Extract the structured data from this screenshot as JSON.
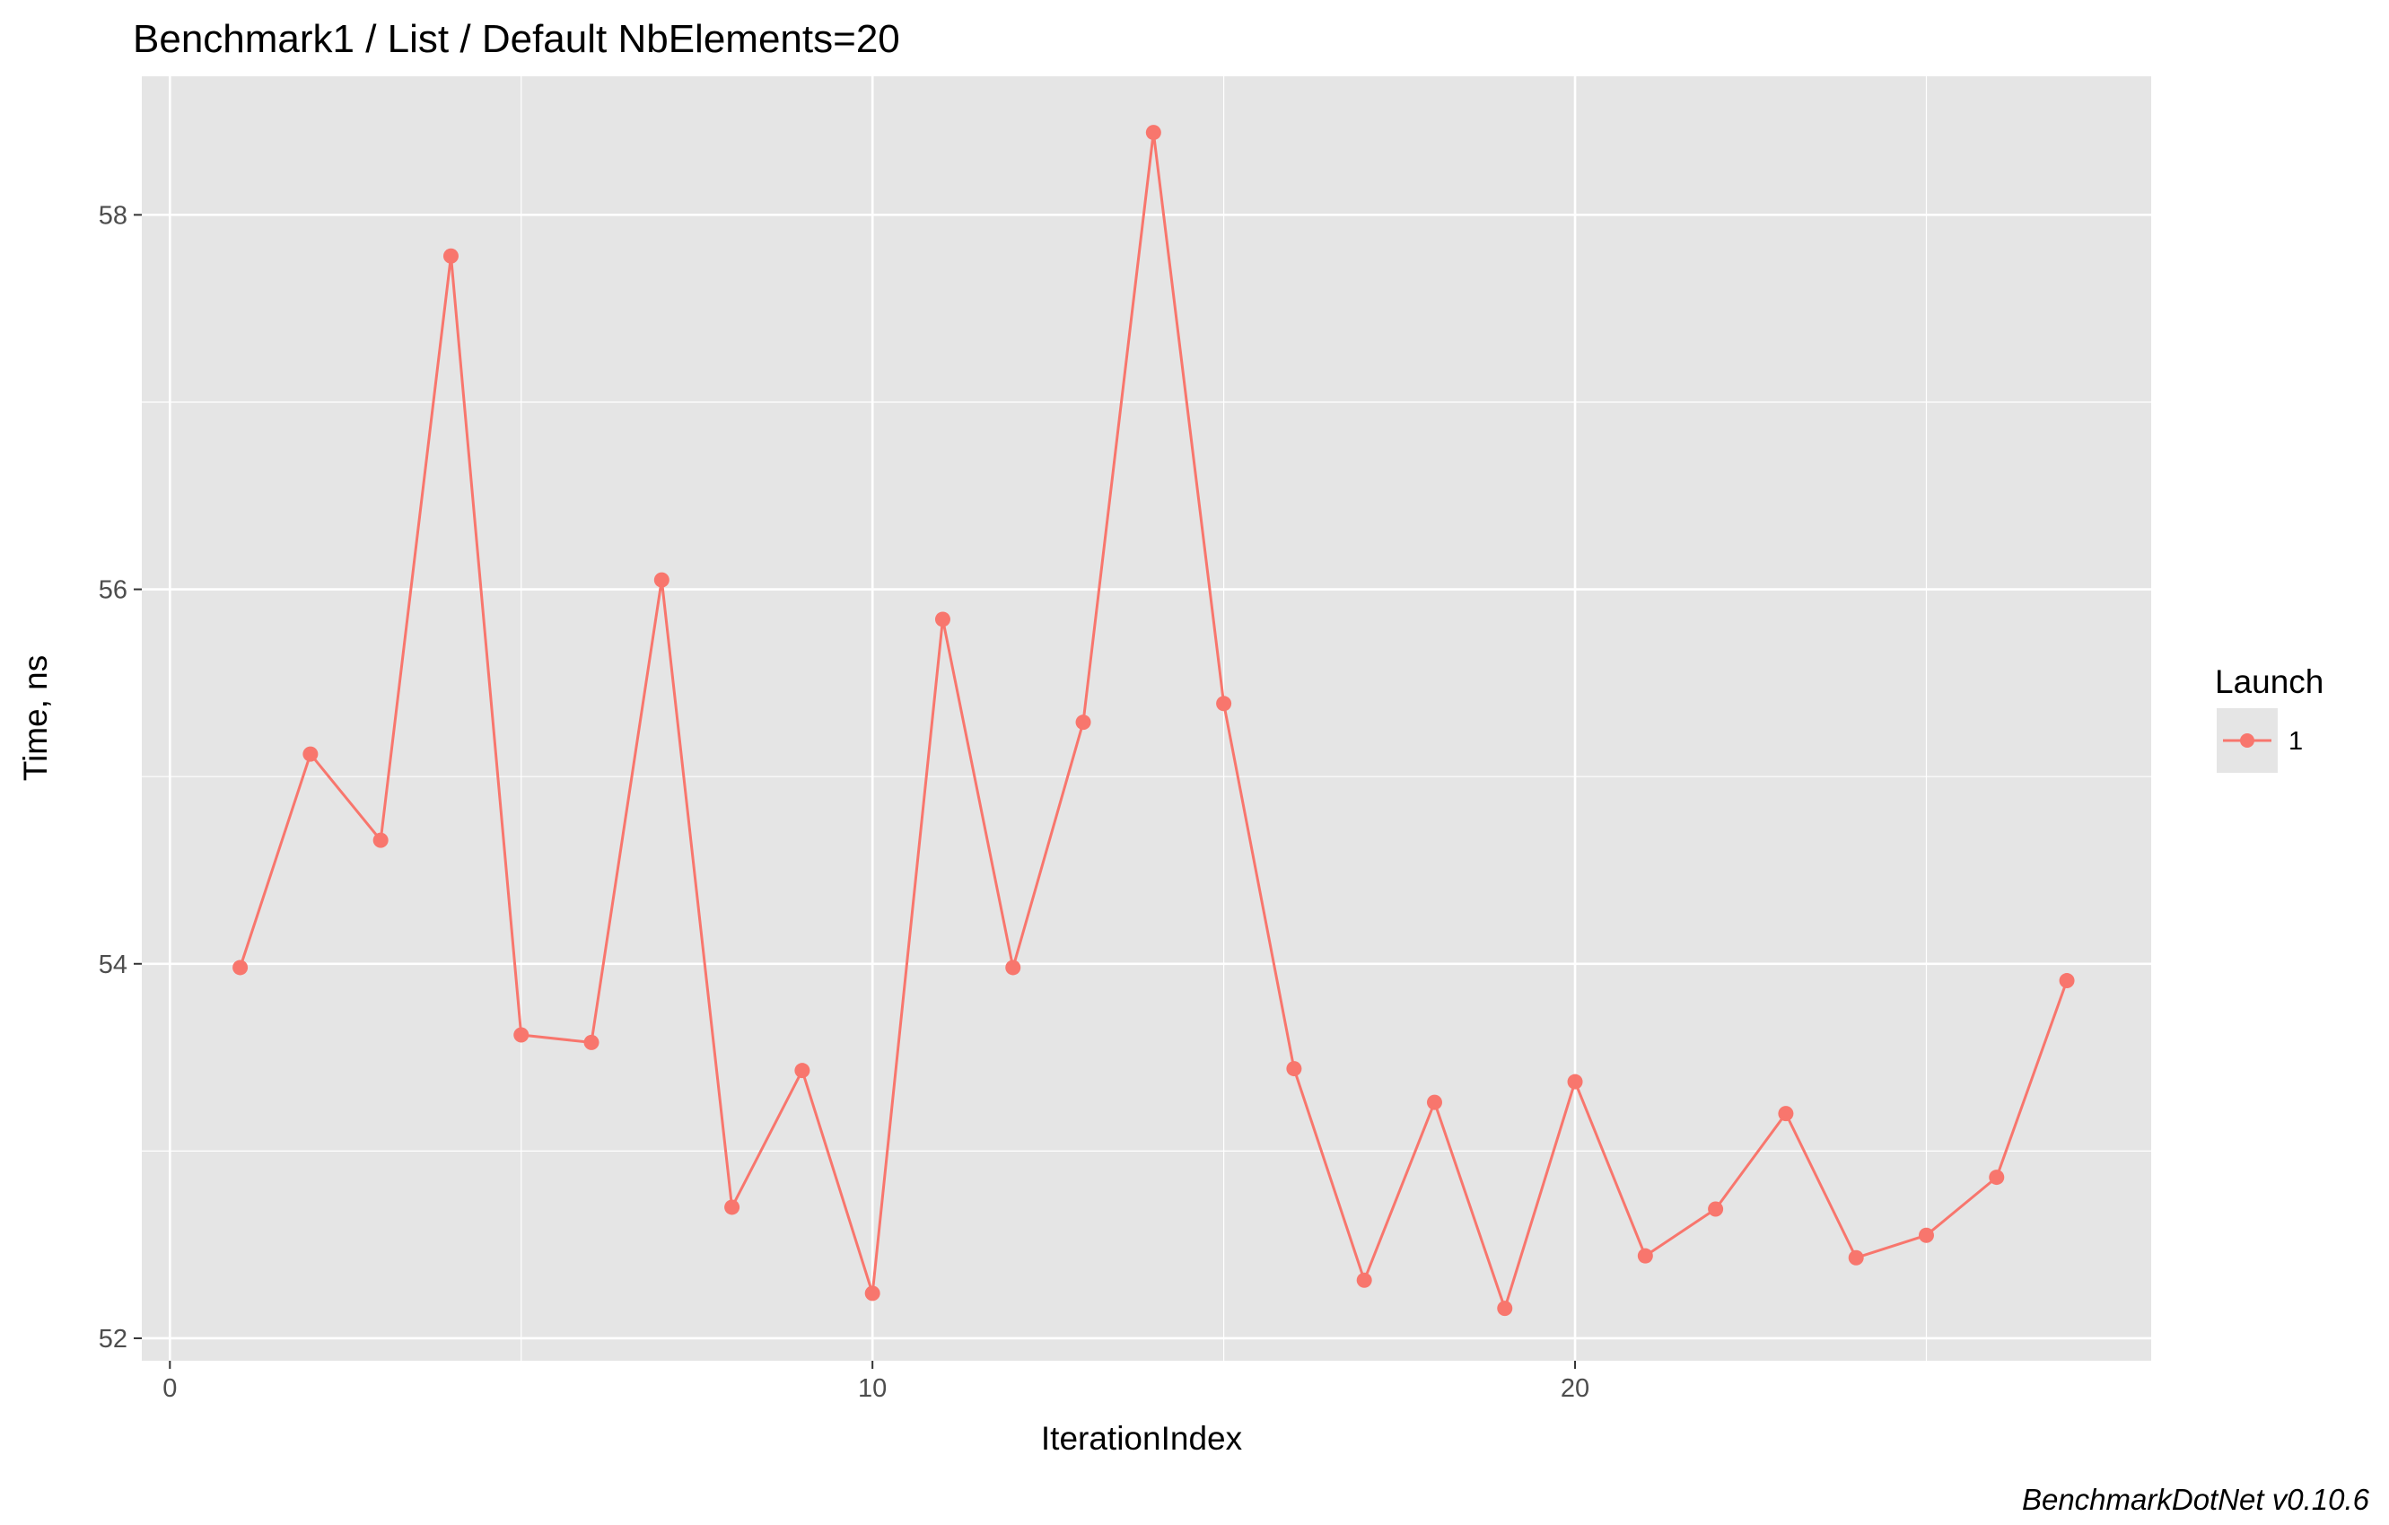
{
  "chart_data": {
    "type": "line",
    "title": "Benchmark1 / List / Default NbElements=20",
    "xlabel": "IterationIndex",
    "ylabel": "Time, ns",
    "caption": "BenchmarkDotNet v0.10.6",
    "xlim": [
      -0.4,
      28.2
    ],
    "ylim": [
      51.88,
      58.74
    ],
    "x_ticks": [
      0,
      10,
      20
    ],
    "x_minor": [
      5,
      15,
      25
    ],
    "y_ticks": [
      52,
      54,
      56,
      58
    ],
    "y_minor": [
      53,
      55,
      57
    ],
    "x_tick_labels": [
      "0",
      "10",
      "20"
    ],
    "y_tick_labels": [
      "52",
      "54",
      "56",
      "58"
    ],
    "grid": true,
    "legend": {
      "title": "Launch",
      "position": "right"
    },
    "series": [
      {
        "name": "1",
        "color": "#F8766D",
        "x": [
          1,
          2,
          3,
          4,
          5,
          6,
          7,
          8,
          9,
          10,
          11,
          12,
          13,
          14,
          15,
          16,
          17,
          18,
          19,
          20,
          21,
          22,
          23,
          24,
          25,
          26,
          27
        ],
        "values": [
          53.98,
          55.12,
          54.66,
          57.78,
          53.62,
          53.58,
          56.05,
          52.7,
          53.43,
          52.24,
          55.84,
          53.98,
          55.29,
          58.44,
          55.39,
          53.44,
          52.31,
          53.26,
          52.16,
          53.37,
          52.44,
          52.69,
          53.2,
          52.43,
          52.55,
          52.86,
          53.91
        ]
      }
    ],
    "colors": {
      "panel": "#E5E5E5",
      "grid": "#FFFFFF",
      "tick": "#333333"
    }
  }
}
